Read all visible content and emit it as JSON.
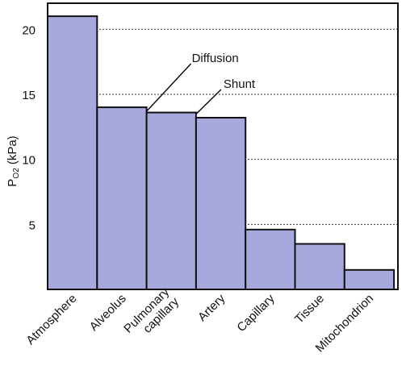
{
  "chart_data": {
    "type": "bar",
    "categories": [
      "Atmosphere",
      "Alveolus",
      "Pulmonary capillary",
      "Artery",
      "Capillary",
      "Tissue",
      "Mitochondrion"
    ],
    "category_lines": [
      [
        "Atmosphere"
      ],
      [
        "Alveolus"
      ],
      [
        "Pulmonary",
        "capillary"
      ],
      [
        "Artery"
      ],
      [
        "Capillary"
      ],
      [
        "Tissue"
      ],
      [
        "Mitochondrion"
      ]
    ],
    "values": [
      21,
      14,
      13.6,
      13.2,
      4.6,
      3.5,
      1.5
    ],
    "ylabel_main": "P",
    "ylabel_sub": "O2",
    "ylabel_rest": " (kPa)",
    "yticks": [
      5,
      10,
      15,
      20
    ],
    "ytick_labels": [
      "5",
      "10",
      "15",
      "20"
    ],
    "ylim": [
      0,
      22
    ],
    "grid": "horizontal dotted at 5, 10, 15, 20",
    "annotations": [
      {
        "text": "Diffusion",
        "between": [
          "Alveolus",
          "Pulmonary capillary"
        ]
      },
      {
        "text": "Shunt",
        "between": [
          "Pulmonary capillary",
          "Artery"
        ]
      }
    ],
    "colors": {
      "bar_fill": "#a7a9dc",
      "bar_stroke": "#111111",
      "grid": "#333333",
      "axis": "#111111"
    }
  }
}
